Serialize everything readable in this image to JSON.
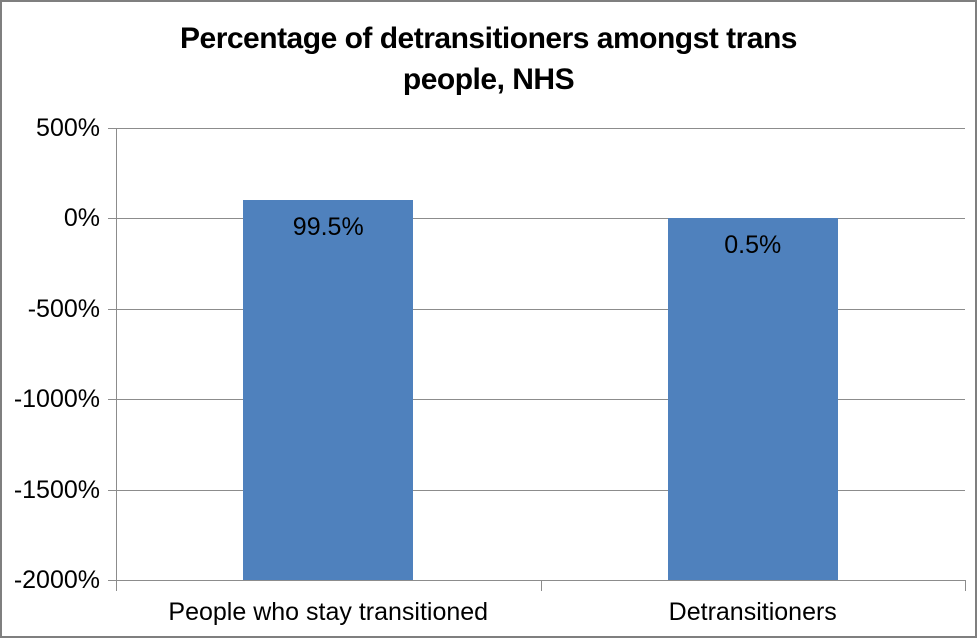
{
  "window": {
    "background": "#ffffff",
    "border_color": "#7f7f7f"
  },
  "chart_data": {
    "type": "bar",
    "title": "Percentage of detransitioners amongst trans people, NHS",
    "title_lines": [
      "Percentage of detransitioners amongst trans",
      "people, NHS"
    ],
    "categories": [
      "People who stay transitioned",
      "Detransitioners"
    ],
    "values": [
      99.5,
      0.5
    ],
    "data_labels": [
      "99.5%",
      "0.5%"
    ],
    "xlabel": "",
    "ylabel": "",
    "y_tick_labels": [
      "500%",
      "0%",
      "-500%",
      "-1000%",
      "-1500%",
      "-2000%"
    ],
    "y_tick_values": [
      500,
      0,
      -500,
      -1000,
      -1500,
      -2000
    ],
    "ylim": [
      -2000,
      500
    ],
    "bar_baseline": -2000,
    "grid": true,
    "legend": false,
    "colors": {
      "bar": "#4F81BD",
      "grid": "#8c8c8c",
      "axis": "#8c8c8c",
      "text": "#000000"
    }
  }
}
